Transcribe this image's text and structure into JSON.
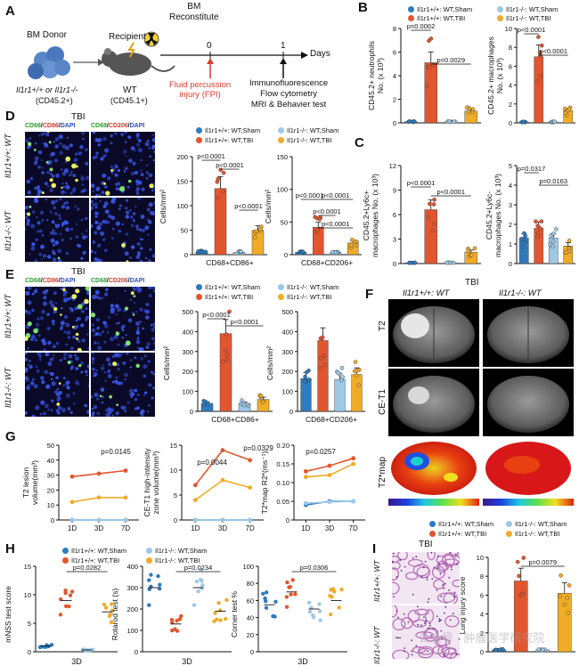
{
  "colors": {
    "wt_sham": "#2e7bbf",
    "ko_sham": "#9ec8e6",
    "wt_tbi": "#e2562f",
    "ko_tbi": "#f0ac28",
    "nuclei": "#1b2b8f",
    "he": "#c77fc0"
  },
  "panels": {
    "A": "A",
    "B": "B",
    "C": "C",
    "D": "D",
    "E": "E",
    "F": "F",
    "G": "G",
    "H": "H",
    "I": "I"
  },
  "panelA": {
    "bm_donor": "BM Donor",
    "bm_reconstitute": "BM\nReconstitute",
    "recipient": "Recipient",
    "donor_genotype": "Il1r1+/+ or Il1r1-/-",
    "donor_strain": "(CD45.2+)",
    "recipient_genotype": "WT",
    "recipient_strain": "(CD45.1+)",
    "t0": "0",
    "t1": "1",
    "days": "Days",
    "fpi": "Fluid percussion\ninjury (FPI)",
    "assays": "Immunofluorescence\nFlow cytometry\nMRI & Behavier test"
  },
  "legend": {
    "wt_sham": "Il1r1+/+: WT,Sham",
    "ko_sham": "Il1r1-/-: WT,Sham",
    "wt_tbi": "Il1r1+/+: WT,TBI",
    "ko_tbi": "Il1r1-/-: WT,TBI"
  },
  "panelB": {
    "neutrophils": {
      "ylabel": "CD45.2+ neutrophils\nNo. (x 10³)",
      "yticks": [
        "0",
        "2",
        "4",
        "6",
        "8"
      ],
      "p_values": [
        "p=0.0002",
        "p=0.0029"
      ]
    },
    "macrophages": {
      "ylabel": "CD45.2+ macrophages\nNo. (x 10³)",
      "yticks": [
        "0",
        "2",
        "4",
        "6",
        "8",
        "10"
      ],
      "p_values": [
        "p<0.0001",
        "p<0.0001"
      ]
    }
  },
  "panelC": {
    "ly6c_hi": {
      "ylabel": "CD45.2+Ly6c+\nmacrophages No. (x 10³)",
      "yticks": [
        "0",
        "3",
        "6",
        "9",
        "12"
      ],
      "p_values": [
        "p<0.0001",
        "p<0.0001"
      ]
    },
    "ly6c_lo": {
      "ylabel": "CD45.2+Ly6c-\nmacrophages No. (x 10³)",
      "yticks": [
        "0",
        "1",
        "2",
        "3",
        "4",
        "5"
      ],
      "p_values": [
        "p=0.0317",
        "p=0.0163"
      ]
    }
  },
  "panelD": {
    "title": "TBI",
    "stain_left": [
      "CD68",
      "/",
      "CD86",
      "/",
      "DAPI"
    ],
    "stain_right": [
      "CD68",
      "/",
      "CD206",
      "/",
      "DAPI"
    ],
    "row_wt": "Il1r1+/+: WT",
    "row_ko": "Il1r1-/-: WT",
    "cd86": {
      "ylabel": "Cells/mm²",
      "yticks": [
        "0",
        "50",
        "100",
        "150",
        "200"
      ],
      "xlabel": "CD68+CD86+",
      "p_values": [
        "p<0.0001",
        "p<0.0001",
        "p<0.0001"
      ]
    },
    "cd206": {
      "ylabel": "Cells/mm²",
      "yticks": [
        "0",
        "50",
        "100",
        "150"
      ],
      "xlabel": "CD68+CD206+",
      "p_values": [
        "p<0.0001",
        "p<0.0001",
        "p<0.0001",
        "p<0.0001"
      ]
    }
  },
  "panelE": {
    "title": "TBI",
    "stain_left": [
      "CD68",
      "/",
      "CD86",
      "/",
      "DAPI"
    ],
    "stain_right": [
      "CD68",
      "/",
      "CD206",
      "/",
      "DAPI"
    ],
    "row_wt": "Il1r1+/+: WT",
    "row_ko": "Il1r1-/-: WT",
    "cd86": {
      "ylabel": "Cells/mm²",
      "yticks": [
        "0",
        "100",
        "200",
        "300",
        "400",
        "500"
      ],
      "xlabel": "CD68+CD86+",
      "p_values": [
        "p<0.0001",
        "p<0.0001"
      ]
    },
    "cd206": {
      "ylabel": "Cells/mm²",
      "yticks": [
        "0",
        "100",
        "200",
        "300",
        "400",
        "500"
      ],
      "xlabel": "CD68+CD206+"
    }
  },
  "panelF": {
    "title": "TBI",
    "col_wt": "Il1r1+/+: WT",
    "col_ko": "Il1r1-/-: WT",
    "rows": [
      "T2",
      "CE-T1",
      "T2*map"
    ]
  },
  "panelG": {
    "xticks": [
      "1D",
      "3D",
      "7D"
    ],
    "t2": {
      "ylabel": "T2 lesion\nvolume(mm³)",
      "yticks": [
        "0",
        "10",
        "20",
        "30",
        "40",
        "50"
      ],
      "p": "p=0.0145"
    },
    "cet1": {
      "ylabel": "CE-T1 high-intensity\nzone volume(mm³)",
      "yticks": [
        "0",
        "5",
        "10",
        "15"
      ],
      "p_values": [
        "p=0.0044",
        "p=0.0329"
      ]
    },
    "t2star": {
      "ylabel": "T2*map R2*(ms⁻¹)",
      "yticks": [
        "0",
        "0.05",
        "0.10",
        "0.15",
        "0.20"
      ],
      "p": "p=0.0257"
    }
  },
  "panelH": {
    "mnss": {
      "ylabel": "mNSS test score",
      "yticks": [
        "0",
        "5",
        "10",
        "15"
      ],
      "p": "p=0.0282",
      "xlabel": "3D"
    },
    "rotarod": {
      "ylabel": "Rotarod test (s)",
      "yticks": [
        "0",
        "100",
        "200",
        "300",
        "400"
      ],
      "p": "p=0.0234",
      "xlabel": "3D"
    },
    "corner": {
      "ylabel": "Corner test %",
      "yticks": [
        "0",
        "20",
        "40",
        "60",
        "80",
        "100"
      ],
      "p": "p=0.0306",
      "xlabel": "3D"
    }
  },
  "panelI": {
    "title": "TBI",
    "row_wt": "Il1r1+/+: WT",
    "row_ko": "Il1r1-/-: WT",
    "ylabel": "Lung injury score",
    "yticks": [
      "0",
      "2",
      "4",
      "6",
      "8",
      "10"
    ],
    "p": "p=0.0079"
  },
  "watermark": "公众号 · 肿瘤医学研究院",
  "chart_data": [
    {
      "type": "bar",
      "title": "",
      "ylabel": "CD45.2+ neutrophils No. (x 10³)",
      "categories": [
        "WT,Sham",
        "WT,TBI",
        "KO,Sham",
        "KO,TBI"
      ],
      "values": [
        0.1,
        5.1,
        0.1,
        1.0
      ],
      "ylim": [
        0,
        8
      ]
    },
    {
      "type": "bar",
      "title": "",
      "ylabel": "CD45.2+ macrophages No. (x 10³)",
      "categories": [
        "WT,Sham",
        "WT,TBI",
        "KO,Sham",
        "KO,TBI"
      ],
      "values": [
        0.1,
        7.0,
        0.1,
        1.3
      ],
      "ylim": [
        0,
        10
      ]
    },
    {
      "type": "bar",
      "title": "",
      "ylabel": "CD45.2+Ly6c+ macrophages No. (x 10³)",
      "categories": [
        "WT,Sham",
        "WT,TBI",
        "KO,Sham",
        "KO,TBI"
      ],
      "values": [
        0.1,
        6.6,
        0.1,
        1.4
      ],
      "ylim": [
        0,
        12
      ]
    },
    {
      "type": "bar",
      "title": "",
      "ylabel": "CD45.2+Ly6c- macrophages No. (x 10³)",
      "categories": [
        "WT,Sham",
        "WT,TBI",
        "KO,Sham",
        "KO,TBI"
      ],
      "values": [
        1.3,
        1.8,
        1.3,
        0.9
      ],
      "ylim": [
        0,
        5
      ]
    },
    {
      "type": "bar",
      "title": "",
      "ylabel": "Cells/mm²",
      "xlabel": "CD68+CD86+",
      "categories": [
        "WT,Sham",
        "WT,TBI",
        "KO,Sham",
        "KO,TBI"
      ],
      "values": [
        6,
        135,
        5,
        50
      ],
      "ylim": [
        0,
        200
      ]
    },
    {
      "type": "bar",
      "title": "",
      "ylabel": "Cells/mm²",
      "xlabel": "CD68+CD206+",
      "categories": [
        "WT,Sham",
        "WT,TBI",
        "KO,Sham",
        "KO,TBI"
      ],
      "values": [
        4,
        42,
        4,
        18
      ],
      "ylim": [
        0,
        150
      ]
    },
    {
      "type": "bar",
      "title": "",
      "ylabel": "Cells/mm²",
      "xlabel": "CD68+CD86+",
      "categories": [
        "WT,Sham",
        "WT,TBI",
        "KO,Sham",
        "KO,TBI"
      ],
      "values": [
        40,
        390,
        40,
        60
      ],
      "ylim": [
        0,
        500
      ]
    },
    {
      "type": "bar",
      "title": "",
      "ylabel": "Cells/mm²",
      "xlabel": "CD68+CD206+",
      "categories": [
        "WT,Sham",
        "WT,TBI",
        "KO,Sham",
        "KO,TBI"
      ],
      "values": [
        165,
        355,
        160,
        185
      ],
      "ylim": [
        0,
        500
      ]
    },
    {
      "type": "line",
      "title": "",
      "ylabel": "T2 lesion volume(mm³)",
      "x": [
        "1D",
        "3D",
        "7D"
      ],
      "series": [
        {
          "name": "WT,TBI",
          "values": [
            29,
            31,
            33
          ]
        },
        {
          "name": "KO,TBI",
          "values": [
            12,
            15,
            15
          ]
        },
        {
          "name": "WT,Sham",
          "values": [
            0,
            0,
            0
          ]
        },
        {
          "name": "KO,Sham",
          "values": [
            0,
            0,
            0
          ]
        }
      ],
      "ylim": [
        0,
        50
      ]
    },
    {
      "type": "line",
      "title": "",
      "ylabel": "CE-T1 high-intensity zone volume(mm³)",
      "x": [
        "1D",
        "3D",
        "7D"
      ],
      "series": [
        {
          "name": "WT,TBI",
          "values": [
            7,
            14,
            12
          ]
        },
        {
          "name": "KO,TBI",
          "values": [
            4,
            8,
            6.5
          ]
        },
        {
          "name": "WT,Sham",
          "values": [
            0,
            0,
            0
          ]
        },
        {
          "name": "KO,Sham",
          "values": [
            0,
            0,
            0
          ]
        }
      ],
      "ylim": [
        0,
        15
      ]
    },
    {
      "type": "line",
      "title": "",
      "ylabel": "T2*map R2*(ms⁻¹)",
      "x": [
        "1D",
        "3D",
        "7D"
      ],
      "series": [
        {
          "name": "WT,TBI",
          "values": [
            0.13,
            0.145,
            0.165
          ]
        },
        {
          "name": "KO,TBI",
          "values": [
            0.115,
            0.12,
            0.15
          ]
        },
        {
          "name": "WT,Sham",
          "values": [
            0.04,
            0.05,
            0.05
          ]
        },
        {
          "name": "KO,Sham",
          "values": [
            0.045,
            0.048,
            0.05
          ]
        }
      ],
      "ylim": [
        0,
        0.2
      ]
    },
    {
      "type": "scatter",
      "title": "",
      "ylabel": "mNSS test score",
      "categories": [
        "WT,Sham",
        "WT,TBI",
        "KO,Sham",
        "KO,TBI"
      ],
      "values": [
        1,
        9,
        0.3,
        7
      ],
      "ylim": [
        0,
        15
      ]
    },
    {
      "type": "scatter",
      "title": "",
      "ylabel": "Rotarod test (s)",
      "categories": [
        "WT,Sham",
        "WT,TBI",
        "KO,Sham",
        "KO,TBI"
      ],
      "values": [
        300,
        130,
        300,
        190
      ],
      "ylim": [
        0,
        400
      ]
    },
    {
      "type": "scatter",
      "title": "",
      "ylabel": "Corner test %",
      "categories": [
        "WT,Sham",
        "WT,TBI",
        "KO,Sham",
        "KO,TBI"
      ],
      "values": [
        55,
        70,
        50,
        60
      ],
      "ylim": [
        0,
        100
      ]
    },
    {
      "type": "bar",
      "title": "",
      "ylabel": "Lung injury score",
      "categories": [
        "WT,Sham",
        "WT,TBI",
        "KO,Sham",
        "KO,TBI"
      ],
      "values": [
        0.2,
        7.5,
        0.2,
        6.2
      ],
      "ylim": [
        0,
        10
      ]
    }
  ]
}
